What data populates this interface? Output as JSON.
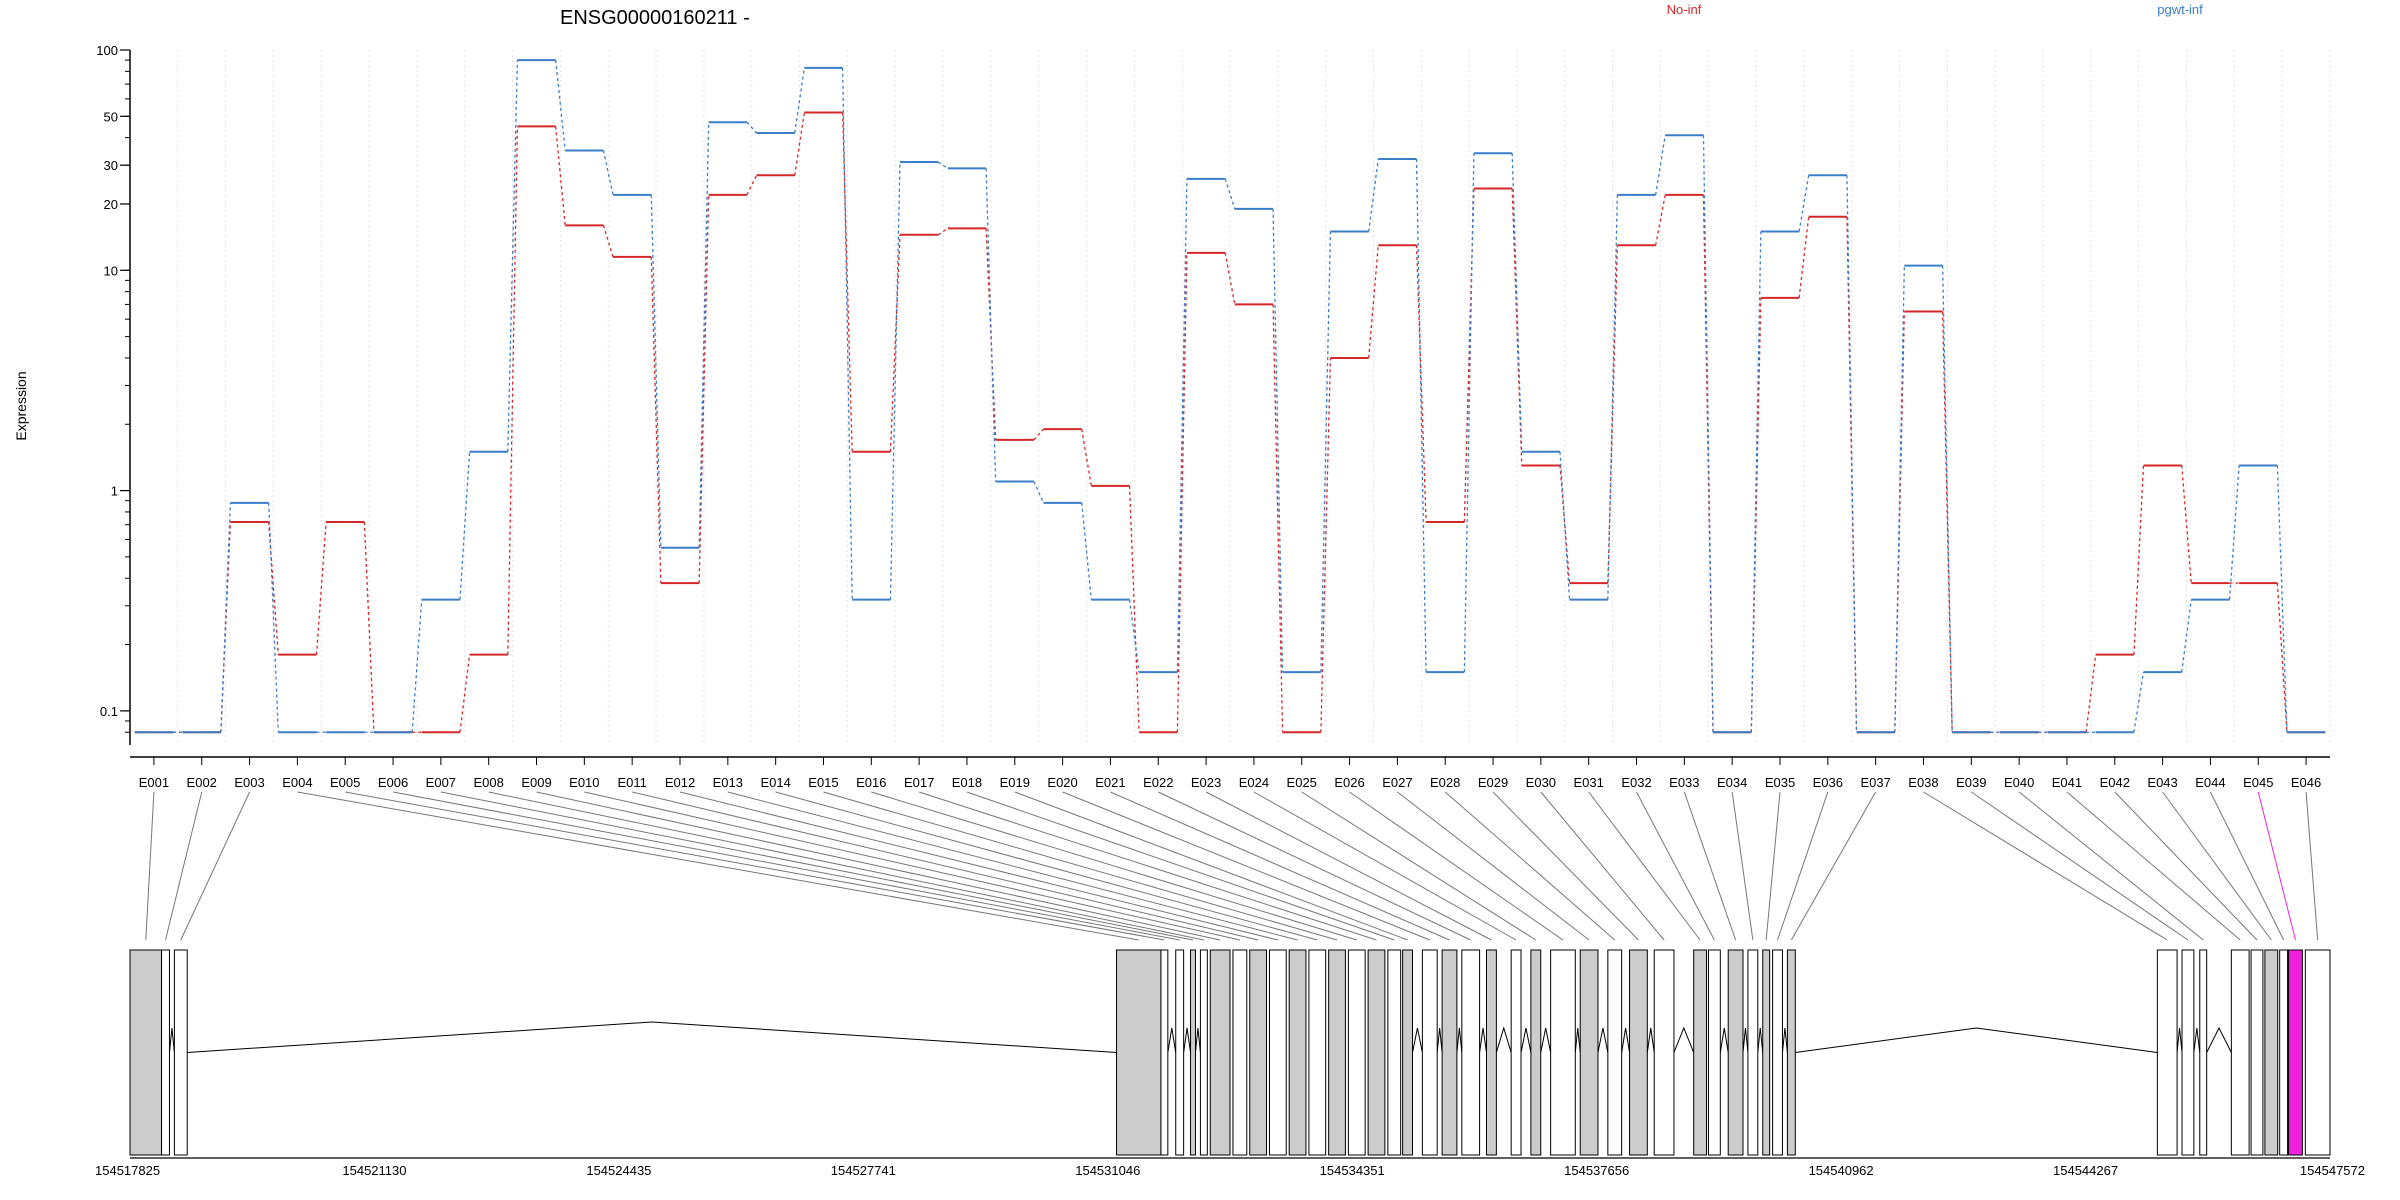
{
  "chart_data": {
    "type": "line",
    "title": "ENSG00000160211 -",
    "ylabel": "Expression",
    "yscale": "log",
    "ylim": [
      0.07,
      100
    ],
    "y_ticks": [
      0.1,
      1,
      10,
      20,
      30,
      50,
      100
    ],
    "y_tick_labels": [
      "0.1",
      "1",
      "10",
      "20",
      "30",
      "50",
      "100"
    ],
    "grid": "vertical dotted",
    "legend_placement": "top",
    "categories": [
      "E001",
      "E002",
      "E003",
      "E004",
      "E005",
      "E006",
      "E007",
      "E008",
      "E009",
      "E010",
      "E011",
      "E012",
      "E013",
      "E014",
      "E015",
      "E016",
      "E017",
      "E018",
      "E019",
      "E020",
      "E021",
      "E022",
      "E023",
      "E024",
      "E025",
      "E026",
      "E027",
      "E028",
      "E029",
      "E030",
      "E031",
      "E032",
      "E033",
      "E034",
      "E035",
      "E036",
      "E037",
      "E038",
      "E039",
      "E040",
      "E041",
      "E042",
      "E043",
      "E044",
      "E045",
      "E046"
    ],
    "series": [
      {
        "name": "No-inf",
        "color": "#d62728",
        "values": [
          0.08,
          0.08,
          0.72,
          0.18,
          0.72,
          0.08,
          0.08,
          0.18,
          45,
          16,
          11.5,
          0.38,
          22,
          27,
          52,
          1.5,
          14.5,
          15.5,
          1.7,
          1.9,
          1.05,
          0.08,
          12,
          7,
          0.08,
          4,
          13,
          0.72,
          23.5,
          1.3,
          0.38,
          13,
          22,
          0.08,
          7.5,
          17.5,
          0.08,
          6.5,
          0.08,
          0.08,
          0.08,
          0.18,
          1.3,
          0.38,
          0.38,
          0.08
        ]
      },
      {
        "name": "pgwt-inf",
        "color": "#3a7dc9",
        "values": [
          0.08,
          0.08,
          0.88,
          0.08,
          0.08,
          0.08,
          0.32,
          1.5,
          90,
          35,
          22,
          0.55,
          47,
          42,
          83,
          0.32,
          31,
          29,
          1.1,
          0.88,
          0.32,
          0.15,
          26,
          19,
          0.15,
          15,
          32,
          0.15,
          34,
          1.5,
          0.32,
          22,
          41,
          0.08,
          15,
          27,
          0.08,
          10.5,
          0.08,
          0.08,
          0.08,
          0.08,
          0.15,
          0.32,
          1.3,
          0.08
        ]
      }
    ],
    "genomic_axis": {
      "tick_labels": [
        "154517825",
        "154521130",
        "154524435",
        "154527741",
        "154531046",
        "154534351",
        "154537656",
        "154540962",
        "154544267",
        "154547572"
      ],
      "start": 154517825,
      "end": 154547572
    },
    "highlight_color": "#ee22dd",
    "highlighted_exon": "E045"
  }
}
